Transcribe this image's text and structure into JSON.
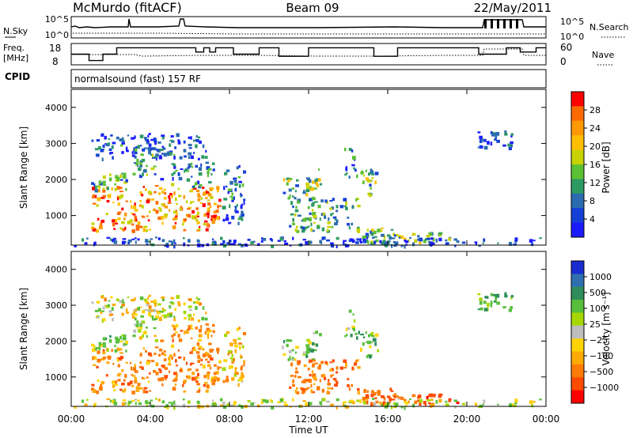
{
  "chart_data": {
    "type": "heatmap",
    "header": {
      "station": "McMurdo (fitACF)",
      "beam": "Beam 09",
      "date": "22/May/2011"
    },
    "noise_panel": {
      "left_label": "N.Sky",
      "left_ticks": [
        "10^5",
        "10^0"
      ],
      "right_label": "N.Search",
      "right_ticks": [
        "10^5",
        "10^0"
      ]
    },
    "freq_panel": {
      "left_label_1": "Freq.",
      "left_label_2": "[MHz]",
      "left_ticks": [
        "18",
        "8"
      ],
      "ylim": [
        8,
        18
      ],
      "right_label": "Nave",
      "right_ticks": [
        "60",
        "0"
      ],
      "freq_steps": [
        [
          0.0,
          13
        ],
        [
          0.9,
          10
        ],
        [
          1.6,
          13
        ],
        [
          2.3,
          16
        ],
        [
          6.3,
          14
        ],
        [
          6.7,
          16
        ],
        [
          7.0,
          14
        ],
        [
          7.3,
          16
        ],
        [
          8.2,
          13
        ],
        [
          9.5,
          16
        ],
        [
          10.5,
          12
        ],
        [
          12.0,
          16
        ],
        [
          15.3,
          12
        ],
        [
          16.5,
          16
        ],
        [
          20.2,
          16
        ],
        [
          20.6,
          13
        ],
        [
          22.0,
          16
        ],
        [
          22.7,
          14
        ],
        [
          23.5,
          16
        ],
        [
          24.0,
          16
        ]
      ]
    },
    "cpid": {
      "label": "CPID",
      "text": "normalsound (fast) 157 RF"
    },
    "x_axis": {
      "label": "Time UT",
      "ticks": [
        "00:00",
        "04:00",
        "08:00",
        "12:00",
        "16:00",
        "20:00",
        "00:00"
      ],
      "xlim": [
        0,
        24
      ]
    },
    "power_panel": {
      "ylabel": "Slant Range [km]",
      "ylim": [
        180,
        4500
      ],
      "y_ticks": [
        1000,
        2000,
        3000,
        4000
      ],
      "colorbar_label": "Power [dB]",
      "colorbar_ticks": [
        "28",
        "24",
        "20",
        "16",
        "12",
        "8",
        "4"
      ],
      "colorbar_colors": [
        "#ff0000",
        "#ff6a00",
        "#ff9900",
        "#ffbf00",
        "#c8d200",
        "#5cc034",
        "#2d9a62",
        "#2b6bb0",
        "#1540d8",
        "#1b1bff"
      ]
    },
    "velocity_panel": {
      "ylabel": "Slant Range [km]",
      "ylim": [
        180,
        4500
      ],
      "y_ticks": [
        1000,
        2000,
        3000,
        4000
      ],
      "colorbar_label": "Velocity [m s⁻¹]",
      "colorbar_ticks": [
        "1000",
        "500",
        "100",
        "25",
        "−25",
        "−100",
        "−500",
        "−1000"
      ],
      "colorbar_colors": [
        "#1a2bd0",
        "#2f6fb0",
        "#2e8d5a",
        "#58bf3c",
        "#a6d800",
        "#bdbdbd",
        "#ffd300",
        "#ffaa00",
        "#ff7a00",
        "#ff4b00",
        "#ff0000"
      ]
    },
    "regions": [
      {
        "t": [
          1.0,
          7.6
        ],
        "r": [
          600,
          1850
        ],
        "p": 24,
        "v": -150
      },
      {
        "t": [
          1.0,
          2.8
        ],
        "r": [
          1700,
          2200
        ],
        "p": 12,
        "v": 120
      },
      {
        "t": [
          1.0,
          6.8
        ],
        "r": [
          2600,
          3300
        ],
        "p": 7,
        "v": 30
      },
      {
        "t": [
          3.0,
          4.6
        ],
        "r": [
          2000,
          2900
        ],
        "p": 10,
        "v": 40
      },
      {
        "t": [
          5.0,
          7.2
        ],
        "r": [
          1800,
          2500
        ],
        "p": 10,
        "v": -120
      },
      {
        "t": [
          7.6,
          8.7
        ],
        "r": [
          800,
          2400
        ],
        "p": 8,
        "v": -60
      },
      {
        "t": [
          10.5,
          12.5
        ],
        "r": [
          1500,
          2100
        ],
        "p": 14,
        "v": 150
      },
      {
        "t": [
          11.0,
          14.5
        ],
        "r": [
          600,
          1500
        ],
        "p": 12,
        "v": -200
      },
      {
        "t": [
          12.2,
          12.6
        ],
        "r": [
          1800,
          2400
        ],
        "p": 14,
        "v": 140
      },
      {
        "t": [
          13.8,
          14.4
        ],
        "r": [
          2100,
          2900
        ],
        "p": 8,
        "v": 120
      },
      {
        "t": [
          14.5,
          15.6
        ],
        "r": [
          1600,
          2300
        ],
        "p": 14,
        "v": 160
      },
      {
        "t": [
          14.4,
          17.5
        ],
        "r": [
          250,
          700
        ],
        "p": 14,
        "v": -250
      },
      {
        "t": [
          17.5,
          19.5
        ],
        "r": [
          250,
          550
        ],
        "p": 14,
        "v": -400
      },
      {
        "t": [
          20.5,
          22.3
        ],
        "r": [
          2900,
          3400
        ],
        "p": 6,
        "v": 200
      },
      {
        "t": [
          0.1,
          23.9
        ],
        "r": [
          180,
          420
        ],
        "p": 6,
        "v": 60
      }
    ]
  }
}
